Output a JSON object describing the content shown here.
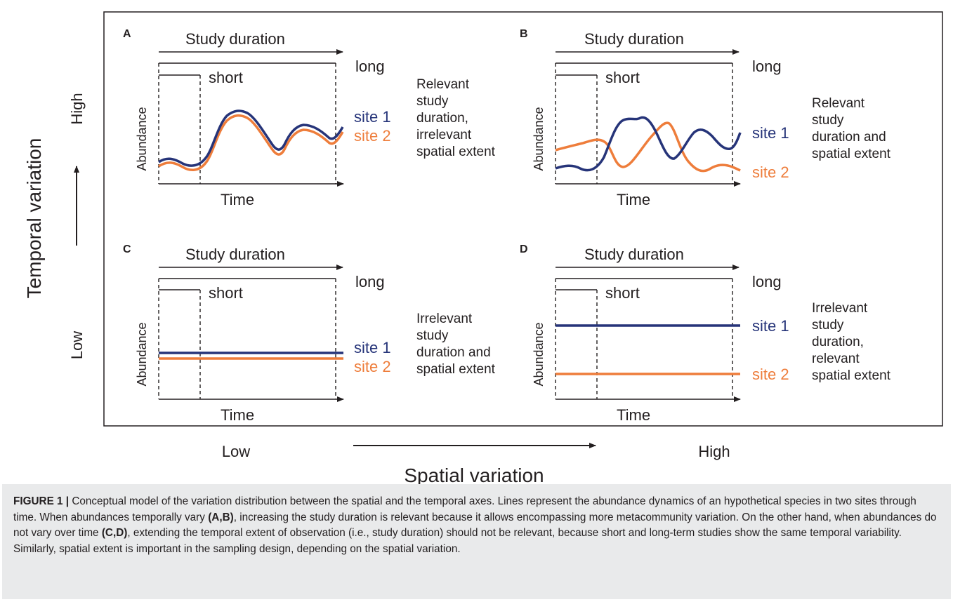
{
  "figure": {
    "axis_y_label": "Temporal variation",
    "axis_y_high": "High",
    "axis_y_low": "Low",
    "axis_x_label": "Spatial variation",
    "axis_x_low": "Low",
    "axis_x_high": "High"
  },
  "panels": [
    {
      "id": "A",
      "study_duration": "Study duration",
      "long": "long",
      "short": "short",
      "y_axis": "Abundance",
      "x_axis": "Time",
      "site1": "site 1",
      "site2": "site 2",
      "description": [
        "Relevant",
        "study",
        "duration,",
        "irrelevant",
        "spatial extent"
      ]
    },
    {
      "id": "B",
      "study_duration": "Study duration",
      "long": "long",
      "short": "short",
      "y_axis": "Abundance",
      "x_axis": "Time",
      "site1": "site 1",
      "site2": "site 2",
      "description": [
        "Relevant",
        "study",
        "duration and",
        "spatial extent"
      ]
    },
    {
      "id": "C",
      "study_duration": "Study duration",
      "long": "long",
      "short": "short",
      "y_axis": "Abundance",
      "x_axis": "Time",
      "site1": "site 1",
      "site2": "site 2",
      "description": [
        "Irrelevant",
        "study",
        "duration and",
        "spatial extent"
      ]
    },
    {
      "id": "D",
      "study_duration": "Study duration",
      "long": "long",
      "short": "short",
      "y_axis": "Abundance",
      "x_axis": "Time",
      "site1": "site 1",
      "site2": "site 2",
      "description": [
        "Irrelevant",
        "study",
        "duration,",
        "relevant",
        "spatial extent"
      ]
    }
  ],
  "caption": {
    "label": "FIGURE 1 |",
    "t1": " Conceptual model of the variation distribution between the spatial and the temporal axes. Lines represent the abundance dynamics of an hypothetical species in two sites through time. When abundances temporally vary ",
    "ref1": "(A,B)",
    "t2": ", increasing the study duration is relevant because it allows encompassing more metacommunity variation. On the other hand, when abundances do not vary over time ",
    "ref2": "(C,D)",
    "t3": ", extending the temporal extent of observation (i.e., study duration) should not be relevant, because short and long-term studies show the same temporal variability. Similarly, spatial extent is important in the sampling design, depending on the spatial variation."
  },
  "colors": {
    "site1": "#263479",
    "site2": "#ee7d3b",
    "ink": "#231f20",
    "caption_bg": "#e9eaeb"
  }
}
